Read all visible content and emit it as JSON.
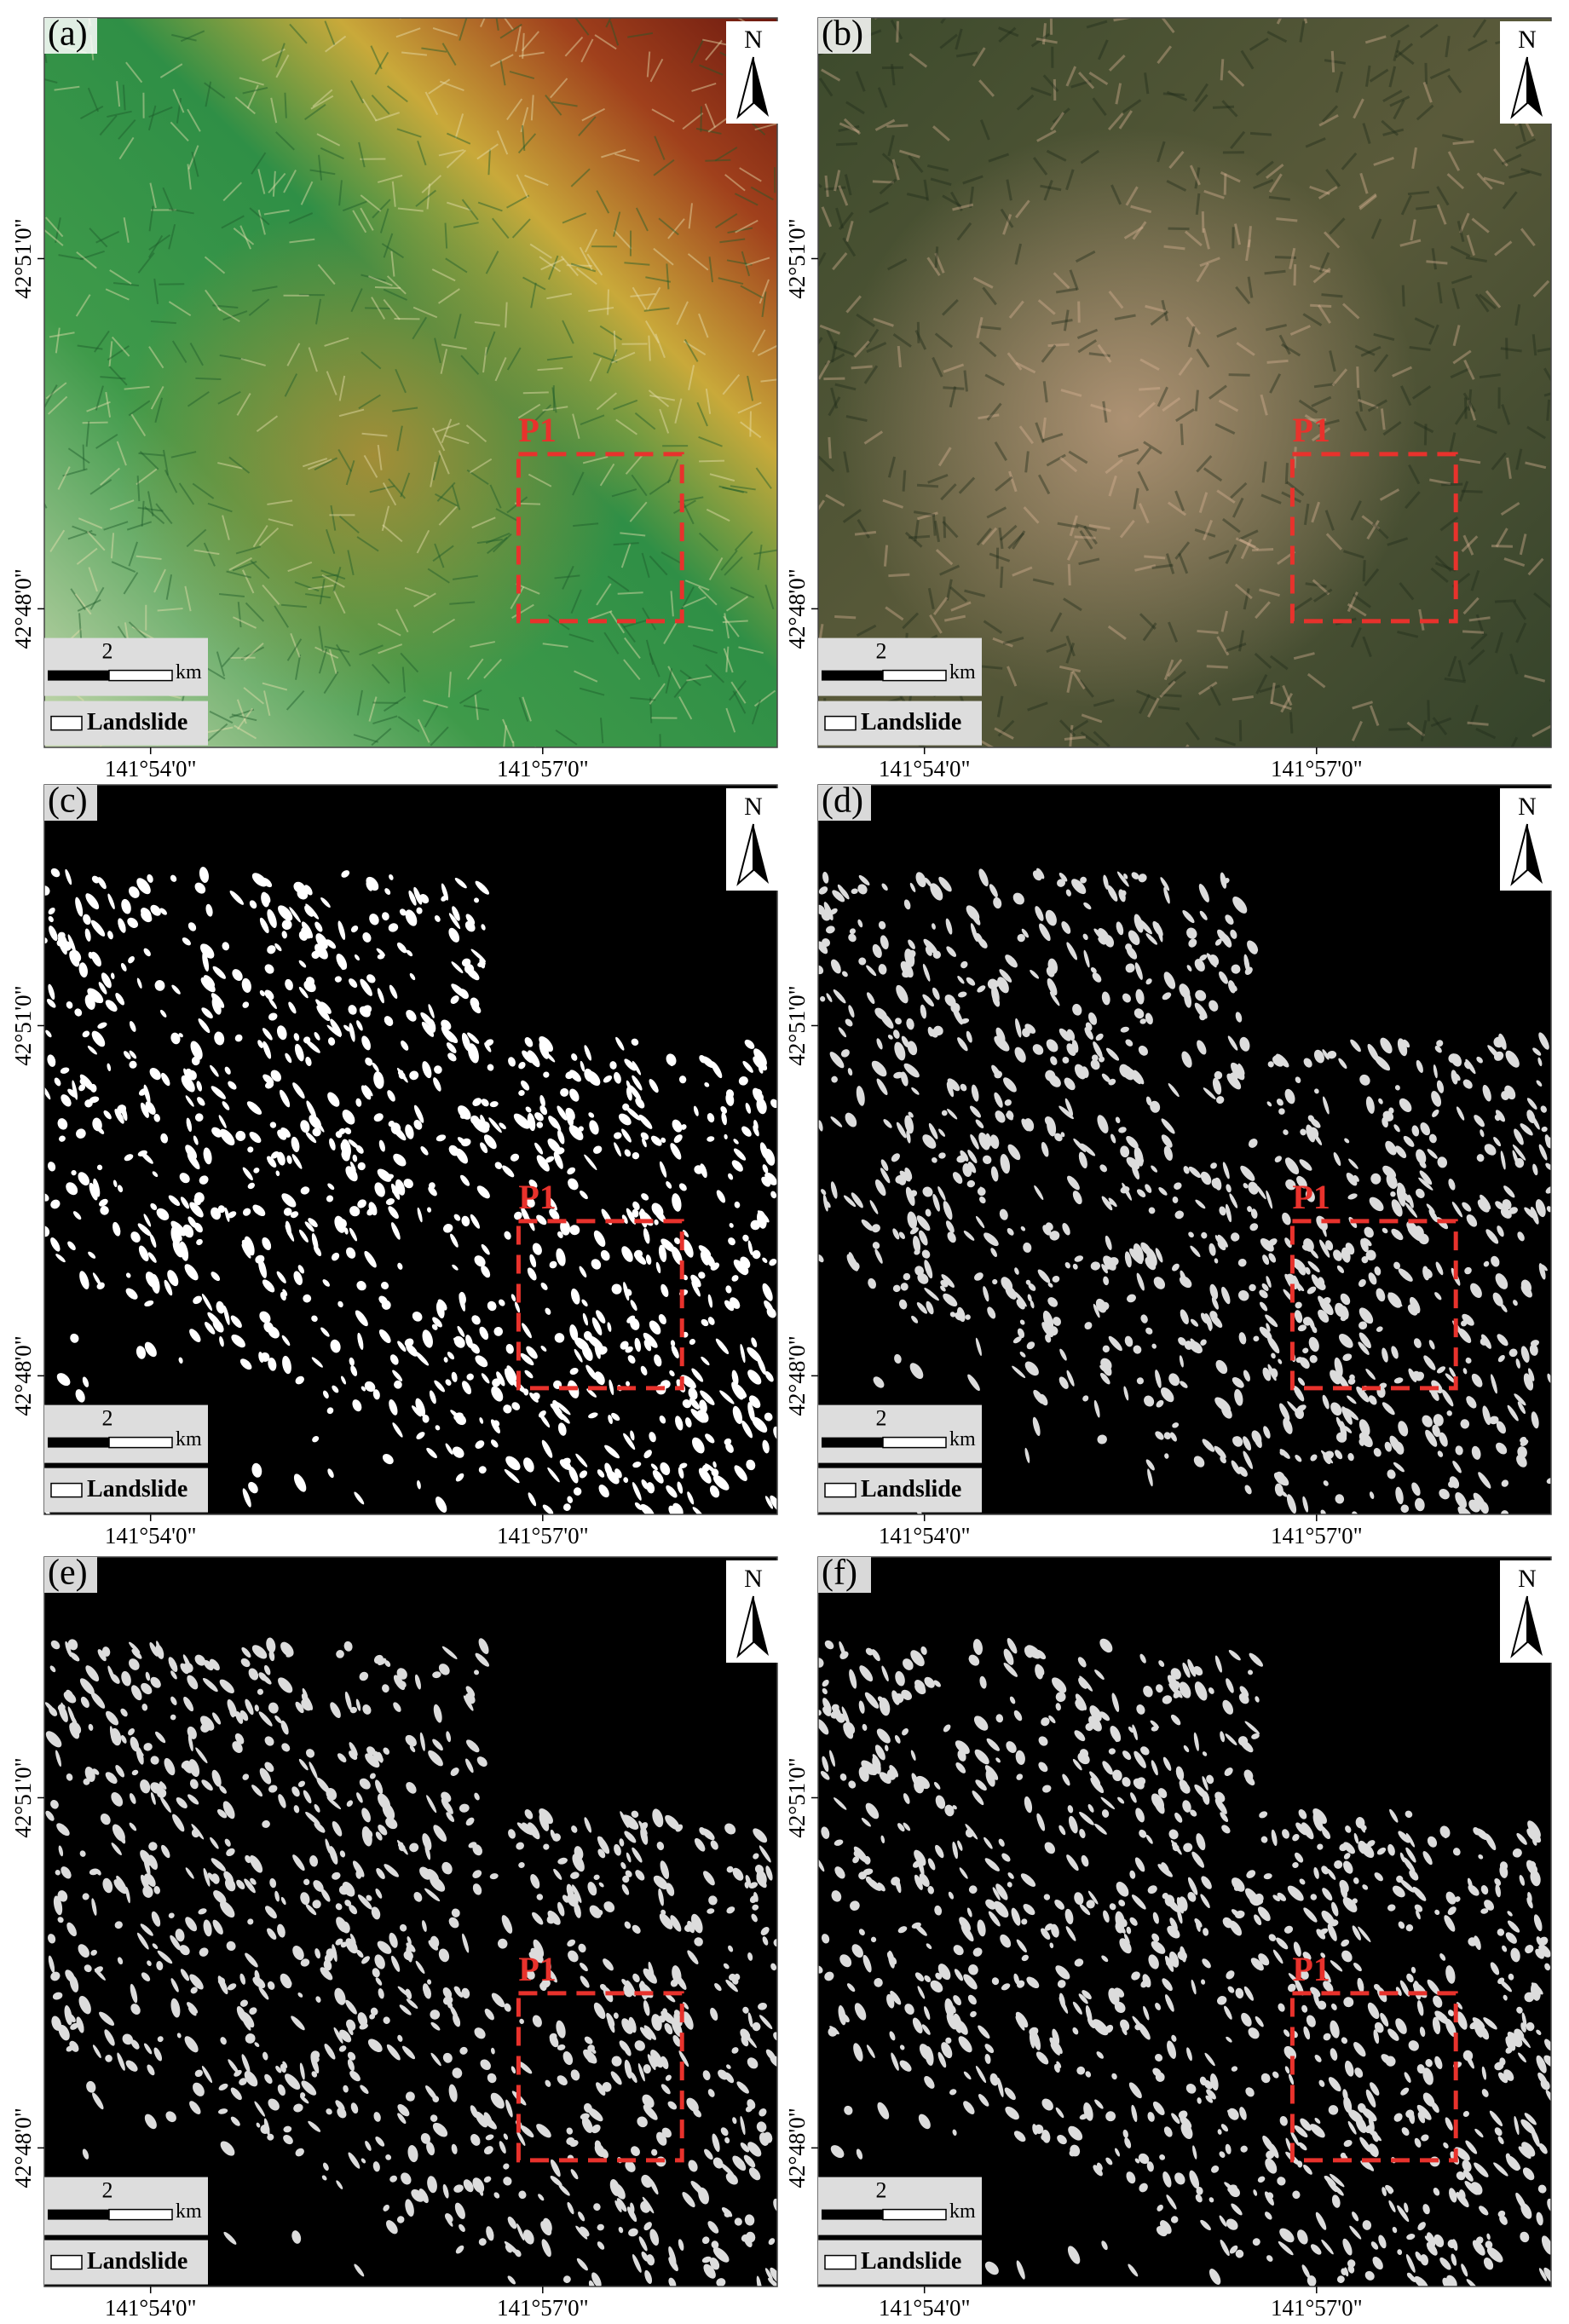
{
  "panels": [
    {
      "label": "(a)",
      "north": "N",
      "y_ticks": [
        "42°51'0\"",
        "42°48'0\""
      ],
      "x_ticks": [
        "141°54'0\"",
        "141°57'0\""
      ],
      "scale": "2",
      "scale_unit": "km",
      "legend": "Landslide",
      "roi": "P1"
    },
    {
      "label": "(b)",
      "north": "N",
      "y_ticks": [
        "42°51'0\"",
        "42°48'0\""
      ],
      "x_ticks": [
        "141°54'0\"",
        "141°57'0\""
      ],
      "scale": "2",
      "scale_unit": "km",
      "legend": "Landslide",
      "roi": "P1"
    },
    {
      "label": "(c)",
      "north": "N",
      "y_ticks": [
        "42°51'0\"",
        "42°48'0\""
      ],
      "x_ticks": [
        "141°54'0\"",
        "141°57'0\""
      ],
      "scale": "2",
      "scale_unit": "km",
      "legend": "Landslide",
      "roi": "P1"
    },
    {
      "label": "(d)",
      "north": "N",
      "y_ticks": [
        "42°51'0\"",
        "42°48'0\""
      ],
      "x_ticks": [
        "141°54'0\"",
        "141°57'0\""
      ],
      "scale": "2",
      "scale_unit": "km",
      "legend": "Landslide",
      "roi": "P1"
    },
    {
      "label": "(e)",
      "north": "N",
      "y_ticks": [
        "42°51'0\"",
        "42°48'0\""
      ],
      "x_ticks": [
        "141°54'0\"",
        "141°57'0\""
      ],
      "scale": "2",
      "scale_unit": "km",
      "legend": "Landslide",
      "roi": "P1"
    },
    {
      "label": "(f)",
      "north": "N",
      "y_ticks": [
        "42°51'0\"",
        "42°48'0\""
      ],
      "x_ticks": [
        "141°54'0\"",
        "141°57'0\""
      ],
      "scale": "2",
      "scale_unit": "km",
      "legend": "Landslide",
      "roi": "P1"
    }
  ]
}
